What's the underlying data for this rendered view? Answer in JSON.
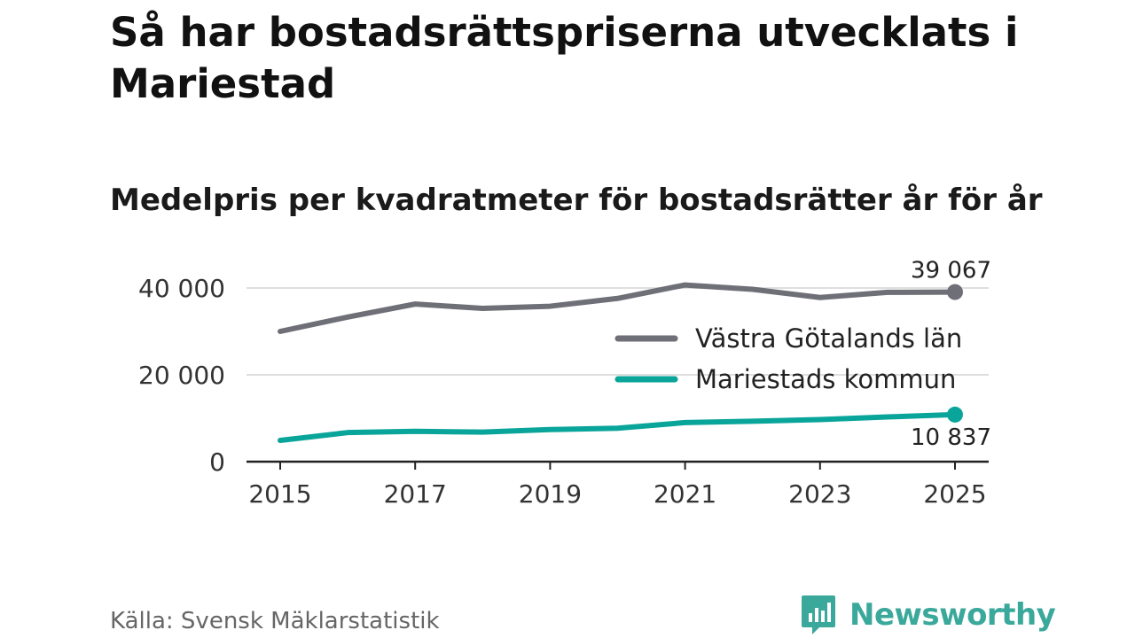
{
  "header": {
    "title": "Så har bostadsrättspriserna utvecklats i Mariestad",
    "subtitle": "Medelpris per kvadratmeter för bostadsrätter år för år"
  },
  "footer": {
    "source": "Källa: Svensk Mäklarstatistik",
    "brand": "Newsworthy"
  },
  "chart_data": {
    "type": "line",
    "title": "Medelpris per kvadratmeter för bostadsrätter år för år",
    "xlabel": "",
    "ylabel": "",
    "x": [
      2015,
      2016,
      2017,
      2018,
      2019,
      2020,
      2021,
      2022,
      2023,
      2024,
      2025
    ],
    "x_ticks": [
      "2015",
      "2017",
      "2019",
      "2021",
      "2023",
      "2025"
    ],
    "y_ticks": [
      "0",
      "20 000",
      "40 000"
    ],
    "ylim": [
      0,
      40000
    ],
    "grid": true,
    "legend_position": "right",
    "series": [
      {
        "name": "Västra Götalands län",
        "color": "#6f6f78",
        "values": [
          30000,
          33300,
          36300,
          35300,
          35800,
          37600,
          40700,
          39700,
          37800,
          39000,
          39067
        ],
        "end_label": "39 067"
      },
      {
        "name": "Mariestads kommun",
        "color": "#0aa59a",
        "values": [
          4900,
          6700,
          7000,
          6800,
          7400,
          7700,
          9000,
          9300,
          9700,
          10300,
          10837
        ],
        "end_label": "10 837"
      }
    ]
  }
}
